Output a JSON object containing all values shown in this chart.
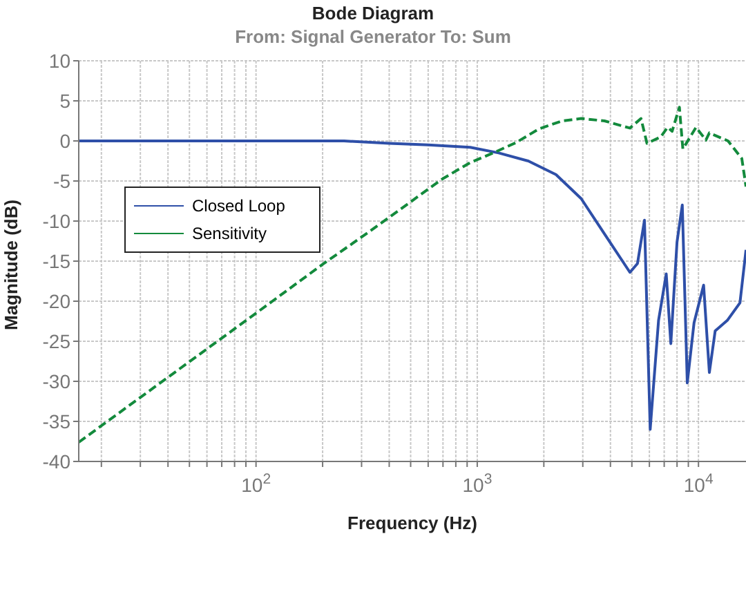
{
  "chart_data": {
    "type": "line",
    "title": "Bode Diagram",
    "subtitle": "From: Signal Generator  To: Sum",
    "xlabel": "Frequency  (Hz)",
    "ylabel": "Magnitude (dB)",
    "log": "x",
    "grid": true,
    "legend": "top left",
    "marker": "none",
    "xlim": [
      15.8,
      16400
    ],
    "xticks": [
      {
        "value": 20,
        "label": null
      },
      {
        "value": 30,
        "label": null
      },
      {
        "value": 40,
        "label": null
      },
      {
        "value": 50,
        "label": null
      },
      {
        "value": 60,
        "label": null
      },
      {
        "value": 70,
        "label": null
      },
      {
        "value": 80,
        "label": null
      },
      {
        "value": 90,
        "label": null
      },
      {
        "value": 100,
        "label": "10$^{2}$"
      },
      {
        "value": 200,
        "label": null
      },
      {
        "value": 300,
        "label": null
      },
      {
        "value": 400,
        "label": null
      },
      {
        "value": 500,
        "label": null
      },
      {
        "value": 600,
        "label": null
      },
      {
        "value": 700,
        "label": null
      },
      {
        "value": 800,
        "label": null
      },
      {
        "value": 900,
        "label": null
      },
      {
        "value": 1000,
        "label": "10$^{3}$"
      },
      {
        "value": 2000,
        "label": null
      },
      {
        "value": 3000,
        "label": null
      },
      {
        "value": 4000,
        "label": null
      },
      {
        "value": 5000,
        "label": null
      },
      {
        "value": 6000,
        "label": null
      },
      {
        "value": 7000,
        "label": null
      },
      {
        "value": 8000,
        "label": null
      },
      {
        "value": 9000,
        "label": null
      },
      {
        "value": 10000,
        "label": "10$^{4}$"
      }
    ],
    "ylim": [
      -40,
      10
    ],
    "yticks": [
      -40,
      -35,
      -30,
      -25,
      -20,
      -15,
      -10,
      -5,
      0,
      5,
      10
    ],
    "series": [
      {
        "name": "Closed Loop",
        "color": "#2e4fa8",
        "line_style": "solid",
        "x": [
          15.8,
          100,
          250,
          400,
          600,
          930,
          1250,
          1700,
          2270,
          2950,
          3760,
          4900,
          5300,
          5700,
          6050,
          6600,
          7150,
          7500,
          8000,
          8450,
          8900,
          9550,
          10550,
          11200,
          11900,
          13500,
          15400,
          16400
        ],
        "values": [
          0,
          0,
          0,
          -0.3,
          -0.5,
          -0.8,
          -1.5,
          -2.5,
          -4.2,
          -7.2,
          -11.6,
          -16.4,
          -15.3,
          -9.9,
          -36,
          -22.4,
          -16.6,
          -25.3,
          -12.6,
          -8,
          -30.2,
          -22.7,
          -18,
          -28.9,
          -23.7,
          -22.4,
          -20.2,
          -13.6
        ]
      },
      {
        "name": "Sensitivity",
        "color": "#138a3c",
        "line_style": "dashed",
        "x": [
          15.8,
          100,
          200,
          300,
          500,
          700,
          930,
          1180,
          1500,
          1900,
          2420,
          2950,
          3760,
          4900,
          5500,
          5850,
          6750,
          7250,
          7600,
          8200,
          8500,
          9750,
          10800,
          11200,
          13600,
          15700,
          16400
        ],
        "values": [
          -37.6,
          -21.5,
          -15.4,
          -12,
          -7.6,
          -4.7,
          -2.7,
          -1.5,
          -0.2,
          1.5,
          2.5,
          2.8,
          2.5,
          1.6,
          2.8,
          -0.3,
          0.5,
          1.7,
          1.2,
          4.2,
          -1,
          1.7,
          0.1,
          1,
          0,
          -2.2,
          -5.7
        ]
      }
    ]
  }
}
